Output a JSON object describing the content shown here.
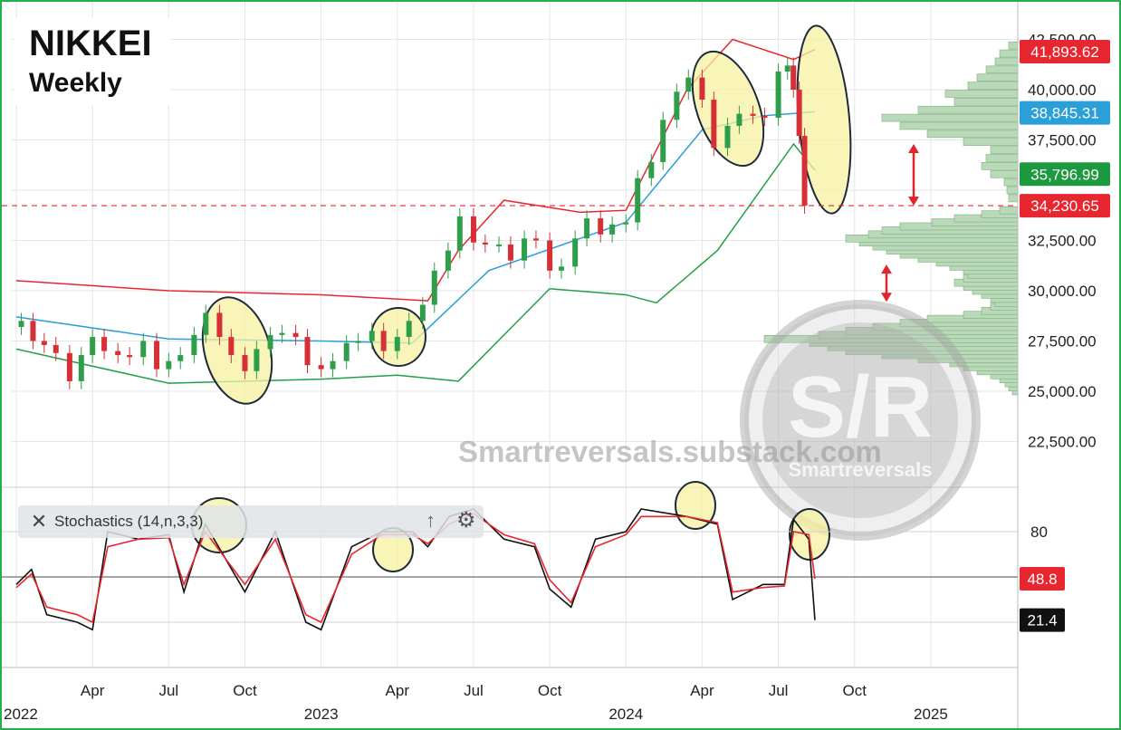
{
  "title": "NIKKEI",
  "subtitle": "Weekly",
  "watermark": "Smartreversals.substack.com",
  "logo": {
    "initials": "S/R",
    "name": "Smartreversals"
  },
  "indicator_label": "Stochastics (14,n,3,3)",
  "icons": [
    "close-icon",
    "arrow-up-icon",
    "gear-icon"
  ],
  "colors": {
    "candle_up": "#2e9e4a",
    "candle_down": "#d62f36",
    "upper_band": "#e8262f",
    "middle_band": "#2a9fd8",
    "lower_band": "#22a045",
    "volume_profile": "#b9d9b8",
    "highlight": "#f7f2a0",
    "stoch_k": "#111111",
    "stoch_d": "#e8262f",
    "frame": "#22b04c"
  },
  "chart_data": [
    {
      "type": "candlestick",
      "title": "NIKKEI",
      "subtitle": "Weekly",
      "x_range": [
        "2022-01",
        "2025-04"
      ],
      "ylim": [
        21000,
        42700
      ],
      "y_ticks": [
        "22,500.00",
        "25,000.00",
        "27,500.00",
        "30,000.00",
        "32,500.00",
        "37,500.00",
        "40,000.00",
        "42,500.00"
      ],
      "x_ticks": [
        {
          "label": "2022",
          "date": "2022-01"
        },
        {
          "label": "Apr",
          "date": "2022-04"
        },
        {
          "label": "Jul",
          "date": "2022-07"
        },
        {
          "label": "Oct",
          "date": "2022-10"
        },
        {
          "label": "2023",
          "date": "2023-01"
        },
        {
          "label": "Apr",
          "date": "2023-04"
        },
        {
          "label": "Jul",
          "date": "2023-07"
        },
        {
          "label": "Oct",
          "date": "2023-10"
        },
        {
          "label": "2024",
          "date": "2024-01"
        },
        {
          "label": "Apr",
          "date": "2024-04"
        },
        {
          "label": "Jul",
          "date": "2024-07"
        },
        {
          "label": "Oct",
          "date": "2024-10"
        },
        {
          "label": "2025",
          "date": "2025-01"
        }
      ],
      "grid": true,
      "close_series": [
        [
          "2022-01-07",
          28500
        ],
        [
          "2022-01-21",
          27500
        ],
        [
          "2022-02-04",
          27300
        ],
        [
          "2022-02-18",
          26900
        ],
        [
          "2022-03-04",
          25500
        ],
        [
          "2022-03-18",
          26800
        ],
        [
          "2022-04-01",
          27700
        ],
        [
          "2022-04-15",
          27000
        ],
        [
          "2022-05-01",
          26800
        ],
        [
          "2022-05-15",
          26700
        ],
        [
          "2022-06-01",
          27500
        ],
        [
          "2022-06-17",
          26100
        ],
        [
          "2022-07-01",
          26500
        ],
        [
          "2022-07-15",
          26800
        ],
        [
          "2022-08-01",
          27800
        ],
        [
          "2022-08-15",
          28900
        ],
        [
          "2022-09-01",
          27700
        ],
        [
          "2022-09-15",
          26800
        ],
        [
          "2022-10-01",
          26000
        ],
        [
          "2022-10-15",
          27100
        ],
        [
          "2022-11-01",
          27800
        ],
        [
          "2022-11-15",
          27900
        ],
        [
          "2022-12-01",
          27700
        ],
        [
          "2022-12-15",
          26300
        ],
        [
          "2023-01-01",
          26100
        ],
        [
          "2023-01-15",
          26500
        ],
        [
          "2023-02-01",
          27400
        ],
        [
          "2023-02-15",
          27500
        ],
        [
          "2023-03-01",
          28000
        ],
        [
          "2023-03-15",
          27000
        ],
        [
          "2023-04-01",
          27700
        ],
        [
          "2023-04-15",
          28500
        ],
        [
          "2023-05-01",
          29300
        ],
        [
          "2023-05-15",
          31000
        ],
        [
          "2023-06-01",
          32000
        ],
        [
          "2023-06-15",
          33700
        ],
        [
          "2023-07-01",
          32400
        ],
        [
          "2023-07-15",
          32300
        ],
        [
          "2023-08-01",
          32300
        ],
        [
          "2023-08-15",
          31500
        ],
        [
          "2023-09-01",
          32600
        ],
        [
          "2023-09-15",
          32500
        ],
        [
          "2023-10-01",
          31000
        ],
        [
          "2023-10-15",
          31200
        ],
        [
          "2023-11-01",
          32600
        ],
        [
          "2023-11-15",
          33600
        ],
        [
          "2023-12-01",
          32800
        ],
        [
          "2023-12-15",
          33300
        ],
        [
          "2024-01-01",
          33400
        ],
        [
          "2024-01-15",
          35600
        ],
        [
          "2024-02-01",
          36400
        ],
        [
          "2024-02-15",
          38500
        ],
        [
          "2024-03-01",
          39900
        ],
        [
          "2024-03-15",
          40600
        ],
        [
          "2024-04-01",
          39500
        ],
        [
          "2024-04-15",
          37100
        ],
        [
          "2024-05-01",
          38200
        ],
        [
          "2024-05-15",
          38800
        ],
        [
          "2024-06-01",
          38700
        ],
        [
          "2024-06-15",
          38600
        ],
        [
          "2024-07-01",
          40900
        ],
        [
          "2024-07-12",
          41200
        ],
        [
          "2024-07-19",
          40000
        ],
        [
          "2024-07-26",
          37700
        ],
        [
          "2024-08-02",
          34230
        ]
      ],
      "bollinger": {
        "upper": [
          [
            2022,
            30500
          ],
          [
            2022.5,
            30000
          ],
          [
            2023,
            29800
          ],
          [
            2023.35,
            29500
          ],
          [
            2023.45,
            32000
          ],
          [
            2023.6,
            34500
          ],
          [
            2023.85,
            33900
          ],
          [
            2024,
            34000
          ],
          [
            2024.2,
            40000
          ],
          [
            2024.35,
            42500
          ],
          [
            2024.55,
            41500
          ],
          [
            2024.62,
            42000
          ]
        ],
        "middle": [
          [
            2022,
            28700
          ],
          [
            2022.5,
            27600
          ],
          [
            2023,
            27500
          ],
          [
            2023.3,
            27400
          ],
          [
            2023.55,
            31000
          ],
          [
            2023.85,
            32600
          ],
          [
            2024,
            33400
          ],
          [
            2024.25,
            38000
          ],
          [
            2024.45,
            38700
          ],
          [
            2024.62,
            38900
          ]
        ],
        "lower": [
          [
            2022,
            27100
          ],
          [
            2022.5,
            25400
          ],
          [
            2023,
            25600
          ],
          [
            2023.25,
            25800
          ],
          [
            2023.45,
            25500
          ],
          [
            2023.75,
            30100
          ],
          [
            2024,
            29800
          ],
          [
            2024.1,
            29400
          ],
          [
            2024.3,
            32000
          ],
          [
            2024.55,
            37300
          ],
          [
            2024.62,
            36000
          ]
        ]
      },
      "price_labels": [
        {
          "label": "41,893.62",
          "value": 41893.62,
          "color": "#e8262f"
        },
        {
          "label": "38,845.31",
          "value": 38845.31,
          "color": "#2a9fd8"
        },
        {
          "label": "35,796.99",
          "value": 35796.99,
          "color": "#1d9a3f"
        },
        {
          "label": "34,230.65",
          "value": 34230.65,
          "color": "#e8262f"
        }
      ],
      "reference_line": 34230.65,
      "annotations": [
        "highlight ellipses at price swings",
        "red double arrows between 34,230 and 37,300 and between 29,500 and 31,300"
      ]
    },
    {
      "type": "line",
      "title": "Stochastics (14,n,3,3)",
      "ylim": [
        0,
        100
      ],
      "y_ticks": [
        "80"
      ],
      "reference_lines": [
        20,
        50,
        80
      ],
      "value_labels": [
        {
          "label": "48.8",
          "value": 48.8,
          "series": "%D"
        },
        {
          "label": "21.4",
          "value": 21.4,
          "series": "%K"
        }
      ],
      "series": [
        {
          "name": "",
          "color": "#111111",
          "values": [
            [
              2022.0,
              45
            ],
            [
              2022.05,
              55
            ],
            [
              2022.1,
              25
            ],
            [
              2022.2,
              20
            ],
            [
              2022.25,
              15
            ],
            [
              2022.3,
              80
            ],
            [
              2022.4,
              75
            ],
            [
              2022.5,
              78
            ],
            [
              2022.55,
              40
            ],
            [
              2022.62,
              85
            ],
            [
              2022.75,
              40
            ],
            [
              2022.85,
              80
            ],
            [
              2022.95,
              20
            ],
            [
              2023.0,
              15
            ],
            [
              2023.1,
              70
            ],
            [
              2023.2,
              80
            ],
            [
              2023.3,
              80
            ],
            [
              2023.35,
              70
            ],
            [
              2023.42,
              90
            ],
            [
              2023.5,
              95
            ],
            [
              2023.6,
              75
            ],
            [
              2023.7,
              70
            ],
            [
              2023.75,
              42
            ],
            [
              2023.82,
              30
            ],
            [
              2023.9,
              75
            ],
            [
              2024.0,
              80
            ],
            [
              2024.05,
              95
            ],
            [
              2024.2,
              90
            ],
            [
              2024.3,
              85
            ],
            [
              2024.35,
              35
            ],
            [
              2024.45,
              45
            ],
            [
              2024.52,
              45
            ],
            [
              2024.55,
              88
            ],
            [
              2024.6,
              75
            ],
            [
              2024.62,
              21.4
            ]
          ]
        },
        {
          "name": "",
          "color": "#e8262f",
          "values": [
            [
              2022.0,
              43
            ],
            [
              2022.05,
              52
            ],
            [
              2022.1,
              30
            ],
            [
              2022.2,
              25
            ],
            [
              2022.25,
              20
            ],
            [
              2022.3,
              70
            ],
            [
              2022.4,
              75
            ],
            [
              2022.5,
              76
            ],
            [
              2022.55,
              45
            ],
            [
              2022.62,
              80
            ],
            [
              2022.75,
              45
            ],
            [
              2022.85,
              75
            ],
            [
              2022.95,
              25
            ],
            [
              2023.0,
              20
            ],
            [
              2023.1,
              65
            ],
            [
              2023.2,
              78
            ],
            [
              2023.3,
              78
            ],
            [
              2023.35,
              72
            ],
            [
              2023.42,
              85
            ],
            [
              2023.5,
              92
            ],
            [
              2023.6,
              78
            ],
            [
              2023.7,
              72
            ],
            [
              2023.75,
              48
            ],
            [
              2023.82,
              33
            ],
            [
              2023.9,
              70
            ],
            [
              2024.0,
              78
            ],
            [
              2024.05,
              90
            ],
            [
              2024.2,
              90
            ],
            [
              2024.3,
              86
            ],
            [
              2024.35,
              40
            ],
            [
              2024.45,
              43
            ],
            [
              2024.52,
              44
            ],
            [
              2024.55,
              80
            ],
            [
              2024.6,
              78
            ],
            [
              2024.62,
              48.8
            ]
          ]
        }
      ]
    }
  ]
}
